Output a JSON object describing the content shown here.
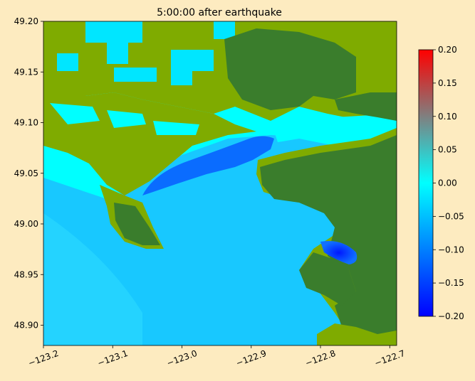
{
  "chart_data": {
    "type": "heatmap",
    "title": "5:00:00 after earthquake",
    "xlabel": "",
    "ylabel": "",
    "xlim": [
      -123.2,
      -122.69
    ],
    "ylim": [
      48.88,
      49.2
    ],
    "x_ticks": [
      -123.2,
      -123.1,
      -123.0,
      -122.9,
      -122.8,
      -122.7
    ],
    "x_tick_labels": [
      "−123.2",
      "−123.1",
      "−123.0",
      "−122.9",
      "−122.8",
      "−122.7"
    ],
    "y_ticks": [
      48.9,
      48.95,
      49.0,
      49.05,
      49.1,
      49.15,
      49.2
    ],
    "y_tick_labels": [
      "48.90",
      "48.95",
      "49.00",
      "49.05",
      "49.10",
      "49.15",
      "49.20"
    ],
    "colorbar": {
      "range": [
        -0.2,
        0.2
      ],
      "ticks": [
        -0.2,
        -0.15,
        -0.1,
        -0.05,
        0.0,
        0.05,
        0.1,
        0.15,
        0.2
      ],
      "tick_labels": [
        "−0.20",
        "−0.15",
        "−0.10",
        "−0.05",
        "0.00",
        "0.05",
        "0.10",
        "0.15",
        "0.20"
      ],
      "colors": [
        "#0000ff",
        "#00ffff",
        "#ff0000"
      ]
    },
    "land_colors": {
      "low_land": "#7fab00",
      "high_land": "#3a7d2c"
    },
    "water_color": "#00e6ff",
    "grid": false
  }
}
